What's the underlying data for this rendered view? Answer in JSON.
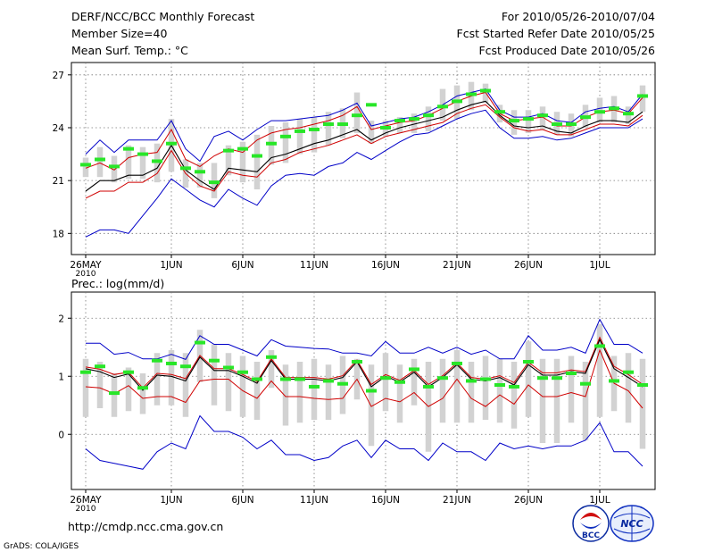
{
  "header": {
    "left1": "DERF/NCC/BCC Monthly Forecast",
    "left2": "Member Size=40",
    "left3": "Mean Surf. Temp.: °C",
    "right1": "For 2010/05/26-2010/07/04",
    "right2": "Fcst Started Refer Date 2010/05/25",
    "right3": "Fcst Produced Date 2010/05/26"
  },
  "footer": {
    "url": "http://cmdp.ncc.cma.gov.cn",
    "grads": "GrADS: COLA/IGES",
    "logo_bcc": "BCC",
    "logo_ncc": "NCC"
  },
  "colors": {
    "spread": "#d2d2d2",
    "mean": "#000000",
    "inner": "#d00000",
    "outer": "#0000c8",
    "median": "#28e628",
    "grid": "#777777"
  },
  "chart_data": [
    {
      "type": "line",
      "title": "Mean Surf. Temp.: °C",
      "xaxis": {
        "labels": [
          "26MAY\n2010",
          "1JUN",
          "6JUN",
          "11JUN",
          "16JUN",
          "21JUN",
          "26JUN",
          "1JUL"
        ],
        "label_days": [
          0,
          6,
          11,
          16,
          21,
          26,
          31,
          36
        ],
        "xlim": [
          0,
          39
        ]
      },
      "ylim": [
        16.8,
        27.7
      ],
      "yticks": [
        18,
        21,
        24,
        27
      ],
      "days": [
        0,
        1,
        2,
        3,
        4,
        5,
        6,
        7,
        8,
        9,
        10,
        11,
        12,
        13,
        14,
        15,
        16,
        17,
        18,
        19,
        20,
        21,
        22,
        23,
        24,
        25,
        26,
        27,
        28,
        29,
        30,
        31,
        32,
        33,
        34,
        35,
        36,
        37,
        38,
        39
      ],
      "series": [
        {
          "name": "max",
          "values": [
            22.5,
            23.3,
            22.6,
            23.3,
            23.3,
            23.3,
            24.4,
            22.8,
            22.1,
            23.5,
            23.8,
            23.3,
            23.9,
            24.4,
            24.4,
            24.5,
            24.6,
            24.7,
            25.0,
            25.4,
            24.1,
            24.3,
            24.5,
            24.6,
            24.9,
            25.3,
            25.8,
            26.0,
            26.2,
            25.0,
            24.6,
            24.6,
            24.8,
            24.4,
            24.3,
            24.9,
            25.1,
            25.2,
            24.9,
            25.9
          ]
        },
        {
          "name": "p75",
          "values": [
            21.7,
            22.0,
            21.6,
            22.3,
            22.5,
            22.6,
            23.9,
            22.2,
            21.8,
            22.4,
            22.8,
            22.6,
            23.3,
            23.7,
            23.9,
            24.0,
            24.2,
            24.4,
            24.7,
            25.2,
            23.9,
            24.1,
            24.3,
            24.4,
            24.7,
            25.1,
            25.5,
            25.8,
            26.0,
            24.8,
            24.4,
            24.5,
            24.6,
            24.1,
            24.1,
            24.6,
            24.9,
            25.0,
            24.8,
            25.7
          ]
        },
        {
          "name": "mean",
          "values": [
            20.4,
            21.0,
            21.0,
            21.3,
            21.3,
            21.7,
            23.0,
            21.6,
            21.0,
            20.5,
            21.7,
            21.6,
            21.5,
            22.3,
            22.5,
            22.8,
            23.1,
            23.3,
            23.6,
            23.9,
            23.3,
            23.7,
            24.0,
            24.2,
            24.4,
            24.6,
            25.0,
            25.3,
            25.5,
            24.7,
            24.1,
            24.0,
            24.1,
            23.8,
            23.7,
            24.1,
            24.4,
            24.4,
            24.3,
            24.9
          ]
        },
        {
          "name": "p25",
          "values": [
            20.0,
            20.4,
            20.4,
            20.9,
            20.9,
            21.4,
            22.7,
            21.4,
            20.7,
            20.4,
            21.5,
            21.3,
            21.2,
            22.0,
            22.2,
            22.6,
            22.8,
            23.0,
            23.3,
            23.6,
            23.1,
            23.5,
            23.7,
            23.9,
            24.1,
            24.3,
            24.8,
            25.1,
            25.3,
            24.6,
            24.0,
            23.8,
            23.9,
            23.6,
            23.6,
            23.9,
            24.2,
            24.2,
            24.1,
            24.7
          ]
        },
        {
          "name": "min",
          "values": [
            17.8,
            18.2,
            18.2,
            18.0,
            19.0,
            20.0,
            21.1,
            20.5,
            19.9,
            19.5,
            20.5,
            20.0,
            19.6,
            20.7,
            21.3,
            21.4,
            21.3,
            21.8,
            22.0,
            22.6,
            22.2,
            22.7,
            23.2,
            23.6,
            23.7,
            24.1,
            24.5,
            24.8,
            25.0,
            24.0,
            23.4,
            23.4,
            23.5,
            23.3,
            23.4,
            23.7,
            24.0,
            24.0,
            24.0,
            24.5
          ]
        },
        {
          "name": "median",
          "values": [
            21.9,
            22.2,
            21.8,
            22.8,
            22.5,
            22.1,
            23.1,
            21.7,
            21.5,
            20.9,
            22.7,
            22.8,
            22.4,
            23.1,
            23.5,
            23.8,
            23.9,
            24.2,
            24.2,
            24.7,
            25.3,
            24.0,
            24.4,
            24.5,
            24.7,
            25.2,
            25.5,
            25.9,
            26.1,
            24.9,
            24.4,
            24.5,
            24.7,
            24.2,
            24.2,
            24.6,
            24.9,
            25.1,
            24.8,
            25.8
          ]
        },
        {
          "name": "spread_hi",
          "values": [
            22.3,
            22.9,
            22.4,
            23.0,
            22.9,
            23.1,
            24.5,
            22.2,
            22.0,
            22.0,
            23.0,
            23.2,
            23.6,
            24.1,
            24.3,
            24.5,
            24.6,
            24.9,
            25.1,
            26.0,
            24.4,
            24.4,
            24.6,
            24.8,
            25.2,
            26.2,
            26.4,
            26.6,
            26.5,
            25.3,
            25.0,
            25.0,
            25.2,
            24.9,
            24.8,
            25.3,
            25.7,
            25.8,
            25.2,
            26.4
          ]
        },
        {
          "name": "spread_lo",
          "values": [
            21.2,
            21.2,
            20.9,
            21.1,
            21.1,
            20.9,
            21.5,
            20.6,
            20.6,
            20.0,
            21.3,
            20.9,
            20.5,
            21.9,
            22.0,
            22.5,
            22.6,
            23.0,
            23.4,
            23.7,
            23.1,
            23.5,
            23.7,
            23.7,
            23.8,
            24.4,
            24.5,
            25.0,
            25.4,
            24.3,
            23.6,
            23.7,
            23.9,
            23.6,
            23.5,
            24.0,
            24.3,
            24.3,
            24.2,
            24.9
          ]
        }
      ]
    },
    {
      "type": "line",
      "title": "Prec.: log(mm/d)",
      "xaxis": {
        "labels": [
          "26MAY\n2010",
          "1JUN",
          "6JUN",
          "11JUN",
          "16JUN",
          "21JUN",
          "26JUN",
          "1JUL"
        ],
        "label_days": [
          0,
          6,
          11,
          16,
          21,
          26,
          31,
          36
        ],
        "xlim": [
          0,
          39
        ]
      },
      "ylim": [
        -0.95,
        2.45
      ],
      "yticks": [
        0,
        1,
        2
      ],
      "days": [
        0,
        1,
        2,
        3,
        4,
        5,
        6,
        7,
        8,
        9,
        10,
        11,
        12,
        13,
        14,
        15,
        16,
        17,
        18,
        19,
        20,
        21,
        22,
        23,
        24,
        25,
        26,
        27,
        28,
        29,
        30,
        31,
        32,
        33,
        34,
        35,
        36,
        37,
        38,
        39
      ],
      "series": [
        {
          "name": "max",
          "values": [
            1.57,
            1.57,
            1.38,
            1.41,
            1.3,
            1.3,
            1.38,
            1.29,
            1.7,
            1.55,
            1.55,
            1.45,
            1.35,
            1.63,
            1.52,
            1.5,
            1.48,
            1.47,
            1.4,
            1.4,
            1.35,
            1.6,
            1.4,
            1.4,
            1.5,
            1.4,
            1.5,
            1.38,
            1.45,
            1.3,
            1.3,
            1.7,
            1.45,
            1.45,
            1.5,
            1.4,
            1.98,
            1.55,
            1.55,
            1.4
          ]
        },
        {
          "name": "mean",
          "values": [
            1.13,
            1.08,
            0.98,
            1.04,
            0.76,
            1.02,
            1.0,
            0.92,
            1.33,
            1.1,
            1.1,
            1.0,
            0.88,
            1.27,
            0.95,
            0.95,
            0.95,
            0.92,
            0.98,
            1.25,
            0.82,
            1.0,
            0.9,
            1.07,
            0.82,
            0.98,
            1.2,
            0.95,
            0.92,
            0.98,
            0.85,
            1.2,
            1.02,
            1.02,
            1.08,
            1.05,
            1.63,
            1.13,
            0.98,
            0.82
          ]
        },
        {
          "name": "p75",
          "values": [
            1.16,
            1.12,
            1.03,
            1.07,
            0.8,
            1.05,
            1.03,
            0.96,
            1.36,
            1.13,
            1.13,
            1.03,
            0.91,
            1.3,
            0.98,
            0.98,
            0.98,
            0.95,
            1.01,
            1.28,
            0.86,
            1.03,
            0.93,
            1.1,
            0.86,
            1.01,
            1.23,
            0.98,
            0.95,
            1.01,
            0.89,
            1.24,
            1.06,
            1.06,
            1.11,
            1.08,
            1.67,
            1.17,
            1.03,
            0.86
          ]
        },
        {
          "name": "p25",
          "values": [
            0.82,
            0.8,
            0.7,
            0.84,
            0.62,
            0.65,
            0.65,
            0.55,
            0.92,
            0.95,
            0.95,
            0.75,
            0.62,
            0.92,
            0.65,
            0.65,
            0.62,
            0.6,
            0.62,
            0.95,
            0.48,
            0.62,
            0.56,
            0.72,
            0.48,
            0.62,
            0.95,
            0.62,
            0.48,
            0.68,
            0.52,
            0.85,
            0.65,
            0.65,
            0.72,
            0.65,
            1.45,
            0.88,
            0.75,
            0.45
          ]
        },
        {
          "name": "min",
          "values": [
            -0.25,
            -0.45,
            -0.5,
            -0.55,
            -0.6,
            -0.3,
            -0.15,
            -0.25,
            0.32,
            0.05,
            0.05,
            -0.05,
            -0.25,
            -0.1,
            -0.35,
            -0.35,
            -0.45,
            -0.4,
            -0.2,
            -0.1,
            -0.4,
            -0.1,
            -0.25,
            -0.25,
            -0.45,
            -0.15,
            -0.3,
            -0.3,
            -0.45,
            -0.15,
            -0.25,
            -0.2,
            -0.25,
            -0.2,
            -0.2,
            -0.1,
            0.2,
            -0.3,
            -0.3,
            -0.55
          ]
        },
        {
          "name": "median",
          "values": [
            1.07,
            1.17,
            0.71,
            1.07,
            0.8,
            1.27,
            1.22,
            1.17,
            1.58,
            1.27,
            1.15,
            1.07,
            0.95,
            1.33,
            0.95,
            0.95,
            0.82,
            0.92,
            0.87,
            1.25,
            0.75,
            0.97,
            0.9,
            1.12,
            0.82,
            0.97,
            1.22,
            0.92,
            0.95,
            0.85,
            0.82,
            1.25,
            0.97,
            0.97,
            1.05,
            0.87,
            1.52,
            0.92,
            1.07,
            0.85
          ]
        },
        {
          "name": "spread_hi",
          "values": [
            1.3,
            1.25,
            1.05,
            1.15,
            1.05,
            1.4,
            1.45,
            1.4,
            1.8,
            1.55,
            1.4,
            1.35,
            1.25,
            1.45,
            1.2,
            1.25,
            1.3,
            1.2,
            1.35,
            1.3,
            1.2,
            1.4,
            1.2,
            1.3,
            1.25,
            1.3,
            1.45,
            1.25,
            1.35,
            1.3,
            1.25,
            1.6,
            1.3,
            1.3,
            1.35,
            1.25,
            1.9,
            1.35,
            1.4,
            1.3
          ]
        },
        {
          "name": "spread_lo",
          "values": [
            0.3,
            0.45,
            0.3,
            0.4,
            0.35,
            0.5,
            0.5,
            0.3,
            0.9,
            0.5,
            0.4,
            0.3,
            0.25,
            0.8,
            0.15,
            0.2,
            0.25,
            0.25,
            0.35,
            0.6,
            -0.2,
            0.4,
            0.2,
            0.5,
            -0.3,
            0.2,
            0.2,
            0.2,
            0.25,
            0.2,
            0.1,
            0.3,
            -0.15,
            -0.15,
            0.2,
            -0.1,
            0.3,
            0.4,
            0.2,
            -0.25
          ]
        }
      ]
    }
  ]
}
